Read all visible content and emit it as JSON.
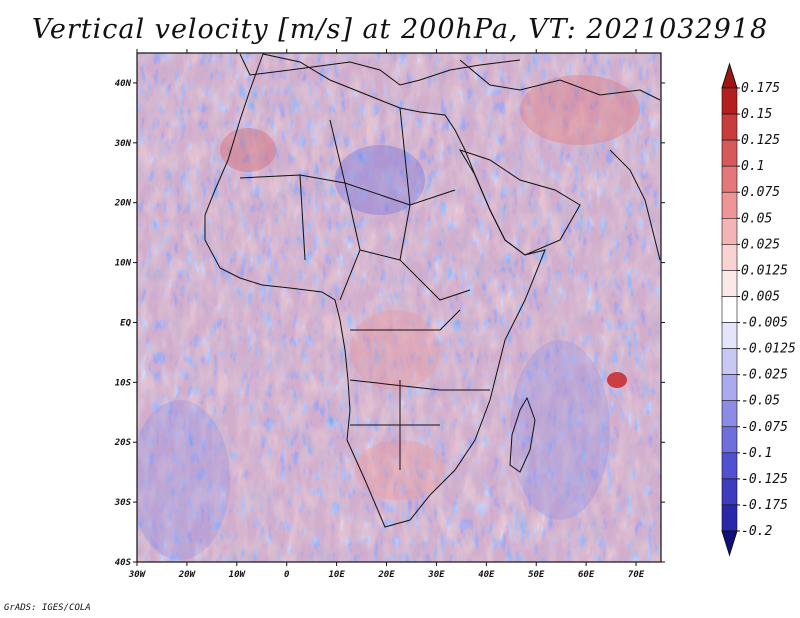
{
  "chart_data": {
    "type": "heatmap",
    "title": "Vertical velocity [m/s] at 200hPa, VT: 2021032918",
    "variable": "Vertical velocity",
    "units": "m/s",
    "level": "200hPa",
    "valid_time": "2021032918",
    "x_range": [
      -30,
      75
    ],
    "y_range": [
      -40,
      45
    ],
    "x_ticks": [
      {
        "value": -30,
        "label": "30W"
      },
      {
        "value": -20,
        "label": "20W"
      },
      {
        "value": -10,
        "label": "10W"
      },
      {
        "value": 0,
        "label": "0"
      },
      {
        "value": 10,
        "label": "10E"
      },
      {
        "value": 20,
        "label": "20E"
      },
      {
        "value": 30,
        "label": "30E"
      },
      {
        "value": 40,
        "label": "40E"
      },
      {
        "value": 50,
        "label": "50E"
      },
      {
        "value": 60,
        "label": "60E"
      },
      {
        "value": 70,
        "label": "70E"
      }
    ],
    "y_ticks": [
      {
        "value": 40,
        "label": "40N"
      },
      {
        "value": 30,
        "label": "30N"
      },
      {
        "value": 20,
        "label": "20N"
      },
      {
        "value": 10,
        "label": "10N"
      },
      {
        "value": 0,
        "label": "EQ"
      },
      {
        "value": -10,
        "label": "10S"
      },
      {
        "value": -20,
        "label": "20S"
      },
      {
        "value": -30,
        "label": "30S"
      },
      {
        "value": -40,
        "label": "40S"
      }
    ],
    "colorbar": {
      "levels": [
        {
          "value": 0.175,
          "label": "0.175",
          "color": "#b41e1e"
        },
        {
          "value": 0.15,
          "label": "0.15",
          "color": "#c83c3c"
        },
        {
          "value": 0.125,
          "label": "0.125",
          "color": "#d75a5a"
        },
        {
          "value": 0.1,
          "label": "0.1",
          "color": "#e47878"
        },
        {
          "value": 0.075,
          "label": "0.075",
          "color": "#ee9696"
        },
        {
          "value": 0.05,
          "label": "0.05",
          "color": "#f5b4b4"
        },
        {
          "value": 0.025,
          "label": "0.025",
          "color": "#fad2d2"
        },
        {
          "value": 0.0125,
          "label": "0.0125",
          "color": "#fde8e8"
        },
        {
          "value": 0.005,
          "label": "0.005",
          "color": "#ffffff"
        },
        {
          "value": -0.005,
          "label": "-0.005",
          "color": "#e4e4fa"
        },
        {
          "value": -0.0125,
          "label": "-0.0125",
          "color": "#c8c8f5"
        },
        {
          "value": -0.025,
          "label": "-0.025",
          "color": "#aaaaf0"
        },
        {
          "value": -0.05,
          "label": "-0.05",
          "color": "#8c8ce6"
        },
        {
          "value": -0.075,
          "label": "-0.075",
          "color": "#6e6edc"
        },
        {
          "value": -0.1,
          "label": "-0.1",
          "color": "#5050d0"
        },
        {
          "value": -0.125,
          "label": "-0.125",
          "color": "#3c3cbe"
        },
        {
          "value": -0.175,
          "label": "-0.175",
          "color": "#2828a8"
        },
        {
          "value": -0.2,
          "label": "-0.2",
          "color": "#161690"
        }
      ],
      "top_extend_color": "#a01414",
      "bottom_extend_color": "#10107a"
    },
    "annotations": [
      "GrADS: IGES/COLA"
    ]
  }
}
